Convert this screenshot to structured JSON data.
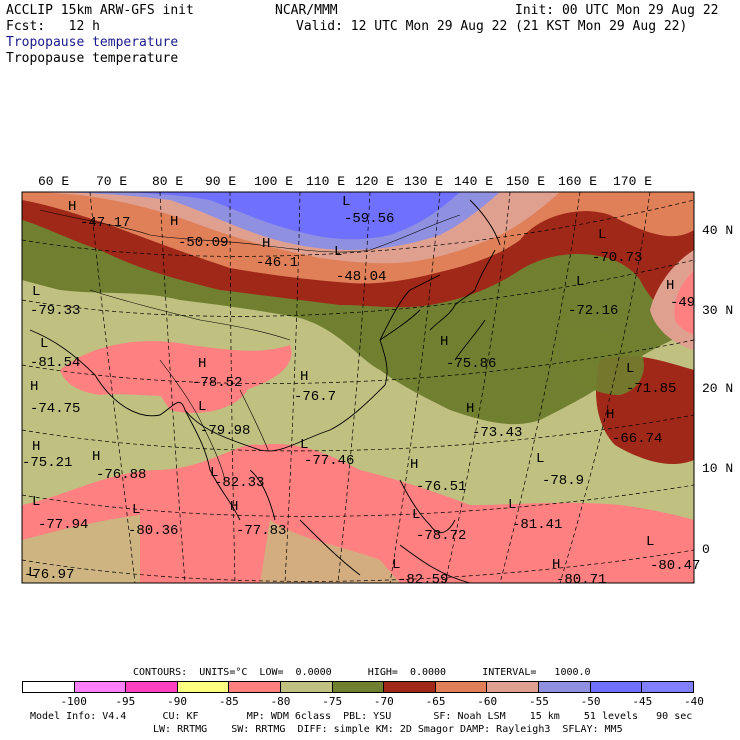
{
  "header": {
    "model": "ACCLIP 15km ARW-GFS init",
    "org": "NCAR/MMM",
    "init": "Init: 00 UTC Mon 29 Aug 22",
    "fcst": "Fcst:   12 h",
    "valid": "Valid: 12 UTC Mon 29 Aug 22 (21 KST Mon 29 Aug 22)",
    "title_fill": "Tropopause temperature",
    "title_contour": "Tropopause temperature"
  },
  "colors": {
    "title_fill": "#1a1a8c",
    "bins": [
      "#ffffff",
      "#ff80ff",
      "#ff40c0",
      "#ffff80",
      "#ff8080",
      "#c0c080",
      "#708030",
      "#a02818",
      "#e08058",
      "#e0a090",
      "#9090e0",
      "#7070ff",
      "#8080ff"
    ]
  },
  "map": {
    "lon_labels": [
      "60 E",
      "70 E",
      "80 E",
      "90 E",
      "100 E",
      "110 E",
      "120 E",
      "130 E",
      "140 E",
      "150 E",
      "160 E",
      "170 E"
    ],
    "lat_labels": [
      "40 N",
      "30 N",
      "20 N",
      "10 N",
      "0"
    ],
    "extrema": [
      {
        "t": "H",
        "v": "-47.17"
      },
      {
        "t": "H",
        "v": "-50.09"
      },
      {
        "t": "H",
        "v": "-46.1"
      },
      {
        "t": "L",
        "v": "-59.56"
      },
      {
        "t": "L",
        "v": "-48.04"
      },
      {
        "t": "L",
        "v": "-79.33"
      },
      {
        "t": "L",
        "v": "-81.54"
      },
      {
        "t": "H",
        "v": "-78.52"
      },
      {
        "t": "H",
        "v": "-76.7"
      },
      {
        "t": "H",
        "v": "-74.75"
      },
      {
        "t": "L",
        "v": "-79.98"
      },
      {
        "t": "H",
        "v": "-75.21"
      },
      {
        "t": "H",
        "v": "-76.88"
      },
      {
        "t": "L",
        "v": "-77.46"
      },
      {
        "t": "L",
        "v": "-82.33"
      },
      {
        "t": "L",
        "v": "-77.94"
      },
      {
        "t": "L",
        "v": "-80.36"
      },
      {
        "t": "H",
        "v": "-77.83"
      },
      {
        "t": "H",
        "v": "-76.51"
      },
      {
        "t": "L",
        "v": "-78.72"
      },
      {
        "t": "L",
        "v": "-78.9"
      },
      {
        "t": "L",
        "v": "-81.41"
      },
      {
        "t": "H",
        "v": "-75.86"
      },
      {
        "t": "H",
        "v": "-73.43"
      },
      {
        "t": "L",
        "v": "-70.73"
      },
      {
        "t": "L",
        "v": "-72.16"
      },
      {
        "t": "H",
        "v": "-49"
      },
      {
        "t": "L",
        "v": "-71.85"
      },
      {
        "t": "H",
        "v": "-66.74"
      },
      {
        "t": "L",
        "v": "-80.47"
      },
      {
        "t": "L",
        "v": "-82.59"
      },
      {
        "t": "H",
        "v": "-80.71"
      },
      {
        "t": "L",
        "v": "-76.97"
      }
    ]
  },
  "footer": {
    "contours": "CONTOURS:  UNITS=°C  LOW=  0.0000      HIGH=  0.0000      INTERVAL=   1000.0",
    "colorbar_ticks": [
      "-100",
      "-95",
      "-90",
      "-85",
      "-80",
      "-75",
      "-70",
      "-65",
      "-60",
      "-55",
      "-50",
      "-45",
      "-40",
      "°C"
    ],
    "model_info_1": "Model Info: V4.4      CU: KF        MP: WDM 6class  PBL: YSU       SF: Noah LSM    15 km    51 levels   90 sec",
    "model_info_2": "LW: RRTMG    SW: RRTMG  DIFF: simple KM: 2D Smagor DAMP: Rayleigh3  SFLAY: MM5"
  }
}
